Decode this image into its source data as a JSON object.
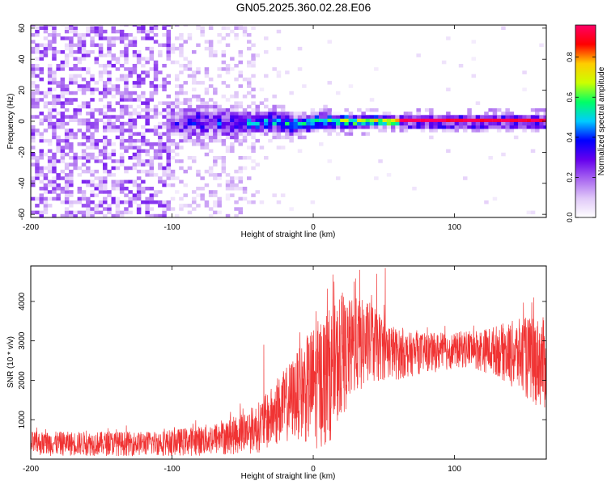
{
  "title": "GN05.2025.360.02.28.E06",
  "colors": {
    "snr_line": "#f03333",
    "colormap": [
      "#ffffff",
      "#e0c8f8",
      "#a866f0",
      "#6600ee",
      "#0000ff",
      "#00ccff",
      "#00ff66",
      "#ccff00",
      "#ffcc00",
      "#ff0000",
      "#ff0066"
    ]
  },
  "chart_data": [
    {
      "type": "heatmap",
      "name": "spectrogram",
      "xlabel": "Height of straight line (km)",
      "ylabel": "Frequency (Hz)",
      "xlim": [
        -200,
        165
      ],
      "ylim": [
        -62,
        62
      ],
      "x_ticks": [
        {
          "value": -200,
          "label": "-200"
        },
        {
          "value": -100,
          "label": "-100"
        },
        {
          "value": 0,
          "label": "0"
        },
        {
          "value": 100,
          "label": "100"
        }
      ],
      "y_ticks": [
        {
          "value": 60,
          "label": "60"
        },
        {
          "value": 40,
          "label": "40"
        },
        {
          "value": 20,
          "label": "20"
        },
        {
          "value": 0,
          "label": "0"
        },
        {
          "value": -20,
          "label": "-20"
        },
        {
          "value": -40,
          "label": "-40"
        },
        {
          "value": -60,
          "label": "-60"
        }
      ],
      "colorbar": {
        "label": "Normalized spectral amplitude",
        "range": [
          0,
          0.96
        ],
        "ticks": [
          {
            "value": 0.0,
            "label": "0.0"
          },
          {
            "value": 0.2,
            "label": "0.2"
          },
          {
            "value": 0.4,
            "label": "0.4"
          },
          {
            "value": 0.6,
            "label": "0.6"
          },
          {
            "value": 0.8,
            "label": "0.8"
          }
        ]
      },
      "regions": [
        {
          "description": "broadband noise",
          "x_range": [
            -200,
            -100
          ],
          "freq_range": [
            -62,
            62
          ],
          "amplitude": 0.1
        },
        {
          "description": "sparse noise",
          "x_range": [
            -100,
            -40
          ],
          "freq_range": [
            -62,
            62
          ],
          "amplitude": 0.05
        },
        {
          "description": "signal band onset",
          "x_range": [
            -100,
            0
          ],
          "freq_range": [
            -12,
            10
          ],
          "amplitude": 0.3
        },
        {
          "description": "narrow signal band",
          "x_range": [
            0,
            60
          ],
          "freq_range": [
            -5,
            5
          ],
          "amplitude": 0.55
        },
        {
          "description": "strong carrier line",
          "x_range": [
            60,
            165
          ],
          "freq_range": [
            -1,
            1
          ],
          "amplitude": 0.95
        }
      ]
    },
    {
      "type": "line",
      "name": "snr",
      "xlabel": "Height of straight line (km)",
      "ylabel": "SNR (10 * v/v)",
      "xlim": [
        -200,
        165
      ],
      "ylim": [
        0,
        4900
      ],
      "x_ticks": [
        {
          "value": -200,
          "label": "-200"
        },
        {
          "value": -100,
          "label": "-100"
        },
        {
          "value": 0,
          "label": "0"
        },
        {
          "value": 100,
          "label": "100"
        }
      ],
      "y_ticks": [
        {
          "value": 1000,
          "label": "1000"
        },
        {
          "value": 2000,
          "label": "2000"
        },
        {
          "value": 3000,
          "label": "3000"
        },
        {
          "value": 4000,
          "label": "4000"
        }
      ],
      "series": [
        {
          "name": "SNR",
          "x": [
            -200,
            -180,
            -160,
            -140,
            -120,
            -100,
            -80,
            -60,
            -40,
            -30,
            -20,
            -10,
            0,
            10,
            20,
            30,
            40,
            50,
            60,
            70,
            80,
            90,
            100,
            110,
            120,
            130,
            140,
            150,
            160,
            165
          ],
          "lower": [
            80,
            80,
            80,
            80,
            80,
            80,
            80,
            100,
            150,
            250,
            400,
            500,
            200,
            300,
            1000,
            1600,
            1800,
            2000,
            2000,
            2100,
            2200,
            2200,
            2300,
            2300,
            2200,
            2100,
            1800,
            1500,
            1300,
            1200
          ],
          "upper": [
            700,
            700,
            700,
            700,
            700,
            750,
            850,
            1000,
            1400,
            1800,
            2300,
            2800,
            3400,
            3800,
            4000,
            4100,
            4000,
            3600,
            3300,
            3200,
            3200,
            3200,
            3200,
            3300,
            3300,
            3400,
            3500,
            3600,
            3600,
            3600
          ],
          "peaks": [
            {
              "x": -35,
              "value": 2900
            },
            {
              "x": 2,
              "value": 3750
            },
            {
              "x": 20,
              "value": 4150
            },
            {
              "x": 29,
              "value": 4500
            },
            {
              "x": 33,
              "value": 4800
            },
            {
              "x": 45,
              "value": 4700
            },
            {
              "x": 51,
              "value": 4850
            },
            {
              "x": 156,
              "value": 4100
            }
          ]
        }
      ]
    }
  ]
}
